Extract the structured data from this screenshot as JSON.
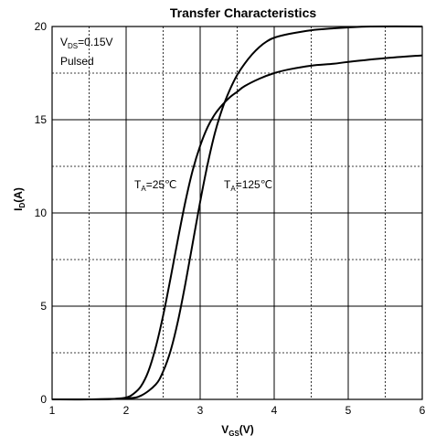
{
  "chart_data": {
    "type": "line",
    "title": "Transfer Characteristics",
    "xlabel_main": "V",
    "xlabel_sub": "GS",
    "xlabel_unit": "(V)",
    "ylabel_main": "I",
    "ylabel_sub": "D",
    "ylabel_unit": "(A)",
    "xlim": [
      1,
      6
    ],
    "ylim": [
      0,
      20
    ],
    "x_ticks": [
      "1",
      "2",
      "3",
      "4",
      "5",
      "6"
    ],
    "y_ticks": [
      "0",
      "5",
      "10",
      "15",
      "20"
    ],
    "grid": true,
    "condition": {
      "vds_main": "V",
      "vds_sub": "DS",
      "vds_value": "=0.15V",
      "pulsed": "Pulsed"
    },
    "series": [
      {
        "label_main": "T",
        "label_sub": "A",
        "label_value": "=25℃",
        "x": [
          1.0,
          1.5,
          1.8,
          2.0,
          2.1,
          2.2,
          2.3,
          2.4,
          2.5,
          2.6,
          2.7,
          2.8,
          2.9,
          3.0,
          3.1,
          3.2,
          3.3,
          3.4,
          3.5,
          3.6,
          3.8,
          4.0,
          4.2,
          4.5,
          4.8,
          5.0,
          5.5,
          6.0
        ],
        "y": [
          0.0,
          0.0,
          0.02,
          0.1,
          0.3,
          0.7,
          1.5,
          2.8,
          4.5,
          6.5,
          8.6,
          10.6,
          12.3,
          13.6,
          14.6,
          15.3,
          15.8,
          16.2,
          16.5,
          16.8,
          17.2,
          17.5,
          17.7,
          17.9,
          18.0,
          18.1,
          18.3,
          18.45
        ]
      },
      {
        "label_main": "T",
        "label_sub": "A",
        "label_value": "=125℃",
        "x": [
          1.0,
          1.5,
          2.0,
          2.2,
          2.4,
          2.5,
          2.6,
          2.7,
          2.8,
          2.9,
          3.0,
          3.1,
          3.2,
          3.3,
          3.4,
          3.5,
          3.6,
          3.7,
          3.8,
          3.9,
          4.0,
          4.2,
          4.5,
          4.8,
          5.0,
          5.3,
          6.0
        ],
        "y": [
          0.0,
          0.0,
          0.05,
          0.2,
          0.8,
          1.5,
          2.6,
          4.2,
          6.2,
          8.4,
          10.6,
          12.6,
          14.3,
          15.6,
          16.6,
          17.4,
          18.0,
          18.5,
          18.9,
          19.2,
          19.4,
          19.6,
          19.8,
          19.9,
          19.95,
          20.0,
          20.0
        ]
      }
    ]
  }
}
